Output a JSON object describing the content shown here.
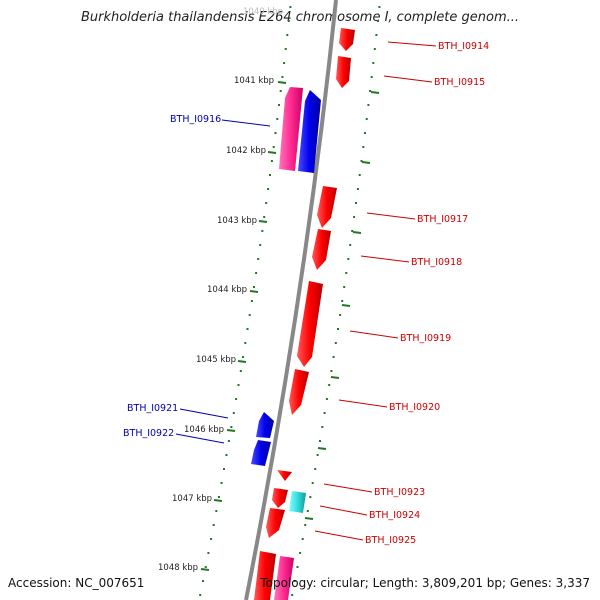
{
  "title": "Burkholderia thailandensis E264 chromosome I, complete genom...",
  "footer": {
    "accession": "Accession: NC_007651",
    "topology": "Topology: circular; Length: 3,809,201 bp; Genes: 3,337"
  },
  "colors": {
    "forward_gene": "#ff0000",
    "reverse_gene": "#0000ee",
    "forward_pink": "#ff3399",
    "rna_cyan": "#33dddd",
    "backbone": "#888888",
    "ticks": "#227722",
    "forward_label": "#cc0000",
    "reverse_label": "#0000aa"
  },
  "tick_labels": [
    "1041 kbp",
    "1042 kbp",
    "1043 kbp",
    "1044 kbp",
    "1045 kbp",
    "1046 kbp",
    "1047 kbp",
    "1048 kbp"
  ],
  "gene_labels": [
    {
      "text": "BTH_I0914",
      "strand": "forward"
    },
    {
      "text": "BTH_I0915",
      "strand": "forward"
    },
    {
      "text": "BTH_I0916",
      "strand": "reverse"
    },
    {
      "text": "BTH_I0917",
      "strand": "forward"
    },
    {
      "text": "BTH_I0918",
      "strand": "forward"
    },
    {
      "text": "BTH_I0919",
      "strand": "forward"
    },
    {
      "text": "BTH_I0920",
      "strand": "forward"
    },
    {
      "text": "BTH_I0921",
      "strand": "reverse"
    },
    {
      "text": "BTH_I0922",
      "strand": "reverse"
    },
    {
      "text": "BTH_I0923",
      "strand": "forward"
    },
    {
      "text": "BTH_I0924",
      "strand": "forward"
    },
    {
      "text": "BTH_I0925",
      "strand": "forward"
    }
  ]
}
